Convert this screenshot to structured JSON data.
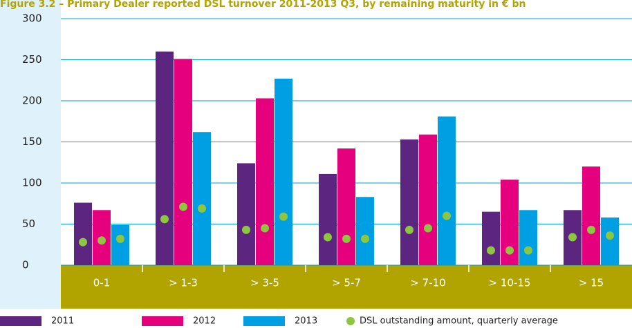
{
  "chart_data": {
    "type": "bar",
    "title": "Figure 3.2 – Primary Dealer reported DSL turnover 2011-2013 Q3, by remaining maturity in € bn",
    "categories": [
      "0-1",
      "> 1-3",
      "> 3-5",
      "> 5-7",
      "> 7-10",
      "> 10-15",
      "> 15"
    ],
    "series": [
      {
        "name": "2011",
        "color": "#5b2580",
        "values": [
          76,
          260,
          124,
          111,
          153,
          65,
          67
        ]
      },
      {
        "name": "2012",
        "color": "#e5007e",
        "values": [
          67,
          251,
          203,
          142,
          159,
          104,
          120
        ]
      },
      {
        "name": "2013",
        "color": "#009fe3",
        "values": [
          49,
          162,
          227,
          83,
          181,
          67,
          58
        ]
      }
    ],
    "dots": {
      "name": "DSL outstanding amount, quarterly average",
      "color": "#8dc63f",
      "values": [
        [
          28,
          30,
          32
        ],
        [
          56,
          71,
          69
        ],
        [
          43,
          45,
          59
        ],
        [
          34,
          32,
          32
        ],
        [
          43,
          45,
          60
        ],
        [
          18,
          18,
          18
        ],
        [
          34,
          43,
          36
        ]
      ]
    },
    "ylim": [
      0,
      300
    ],
    "yticks": [
      0,
      50,
      100,
      150,
      200,
      250,
      300
    ],
    "grid": true
  }
}
